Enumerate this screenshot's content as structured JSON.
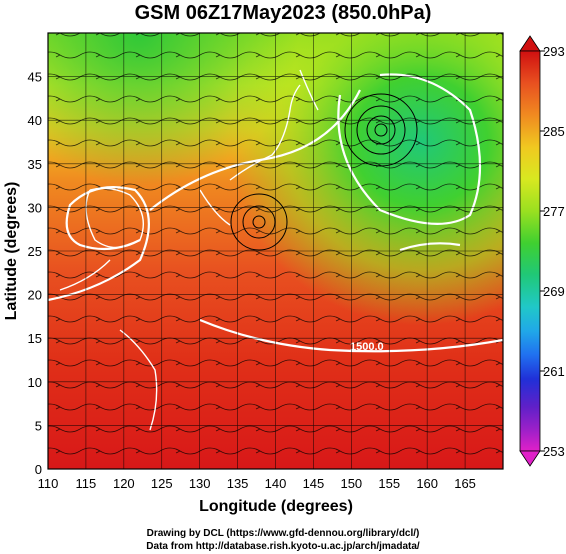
{
  "title": "GSM 06Z17May2023 (850.0hPa)",
  "xaxis": {
    "label": "Longitude (degrees)",
    "range": [
      110,
      170
    ],
    "ticks": [
      "110",
      "115",
      "120",
      "125",
      "130",
      "135",
      "140",
      "145",
      "150",
      "155",
      "160",
      "165"
    ]
  },
  "yaxis": {
    "label": "Latitude  (degrees)",
    "range": [
      0,
      50
    ],
    "ticks": [
      "0",
      "5",
      "10",
      "15",
      "20",
      "25",
      "30",
      "35",
      "40",
      "45"
    ]
  },
  "colorbar": {
    "labels": [
      "293",
      "285",
      "277",
      "269",
      "261",
      "253"
    ],
    "colors": [
      "#d01010",
      "#e85020",
      "#f08a20",
      "#f0c820",
      "#d8e820",
      "#9ae020",
      "#40d030",
      "#20c878",
      "#20c8c8",
      "#20a8e8",
      "#2070f0",
      "#2030d8",
      "#6020c8",
      "#a020c8",
      "#e020c8"
    ]
  },
  "contour_label": "1500.0",
  "credit": {
    "line1": "Drawing by DCL (https://www.gfd-dennou.org/library/dcl/)",
    "line2": "Data from http://database.rish.kyoto-u.ac.jp/arch/jmadata/"
  }
}
